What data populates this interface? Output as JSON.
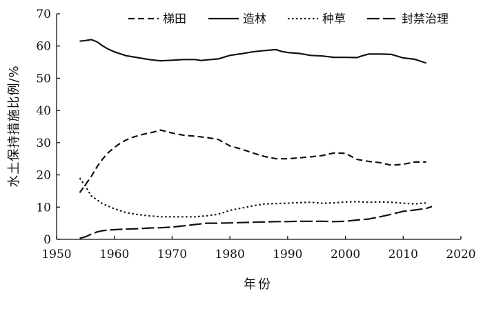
{
  "chart_data": {
    "type": "line",
    "xlabel": "年份",
    "ylabel": "水土保持措施比例/%",
    "xlim": [
      1950,
      2020
    ],
    "ylim": [
      0,
      70
    ],
    "xticks": [
      1950,
      1960,
      1970,
      1980,
      1990,
      2000,
      2010,
      2020
    ],
    "yticks": [
      0,
      10,
      20,
      30,
      40,
      50,
      60,
      70
    ],
    "grid": false,
    "legend_position": "top",
    "series": [
      {
        "name": "梯田",
        "style": "dashed",
        "color": "#111111",
        "x": [
          1954,
          1955,
          1956,
          1957,
          1958,
          1959,
          1960,
          1961,
          1962,
          1963,
          1965,
          1967,
          1968,
          1970,
          1972,
          1974,
          1976,
          1978,
          1980,
          1982,
          1984,
          1986,
          1988,
          1990,
          1992,
          1994,
          1996,
          1998,
          2000,
          2002,
          2004,
          2006,
          2008,
          2010,
          2012,
          2014
        ],
        "y": [
          14.5,
          17,
          19.5,
          22.5,
          25,
          27,
          28.5,
          29.8,
          30.8,
          31.6,
          32.6,
          33.4,
          33.9,
          33,
          32.3,
          32,
          31.6,
          31,
          29,
          28,
          26.8,
          25.7,
          25,
          25,
          25.3,
          25.6,
          26,
          26.8,
          26.7,
          24.8,
          24.2,
          23.8,
          23,
          23.3,
          24,
          24
        ]
      },
      {
        "name": "造林",
        "style": "solid",
        "color": "#111111",
        "x": [
          1954,
          1955,
          1956,
          1957,
          1958,
          1959,
          1960,
          1961,
          1962,
          1964,
          1966,
          1968,
          1970,
          1972,
          1974,
          1975,
          1976,
          1978,
          1980,
          1982,
          1984,
          1986,
          1988,
          1989,
          1990,
          1992,
          1994,
          1996,
          1998,
          2000,
          2002,
          2003,
          2004,
          2006,
          2008,
          2010,
          2012,
          2014
        ],
        "y": [
          61.5,
          61.7,
          62,
          61.3,
          60,
          59,
          58.2,
          57.6,
          57,
          56.4,
          55.8,
          55.4,
          55.6,
          55.8,
          55.8,
          55.5,
          55.7,
          56,
          57.1,
          57.6,
          58.2,
          58.6,
          58.9,
          58.3,
          58,
          57.7,
          57.1,
          56.9,
          56.5,
          56.5,
          56.4,
          57,
          57.5,
          57.5,
          57.4,
          56.3,
          55.9,
          54.7
        ]
      },
      {
        "name": "种草",
        "style": "dotted",
        "color": "#111111",
        "x": [
          1954,
          1955,
          1956,
          1958,
          1960,
          1962,
          1964,
          1966,
          1968,
          1970,
          1972,
          1974,
          1976,
          1978,
          1980,
          1982,
          1984,
          1986,
          1988,
          1990,
          1992,
          1994,
          1996,
          1998,
          2000,
          2002,
          2004,
          2006,
          2008,
          2010,
          2012,
          2014
        ],
        "y": [
          19,
          16.5,
          13.5,
          11,
          9.5,
          8.3,
          7.7,
          7.3,
          7,
          7,
          7,
          7,
          7.3,
          7.8,
          9,
          9.7,
          10.4,
          11,
          11.1,
          11.2,
          11.4,
          11.5,
          11.2,
          11.3,
          11.6,
          11.7,
          11.5,
          11.6,
          11.5,
          11.2,
          11,
          11.3
        ]
      },
      {
        "name": "封禁治理",
        "style": "longdash",
        "color": "#111111",
        "x": [
          1954,
          1955,
          1956,
          1957,
          1958,
          1959,
          1960,
          1962,
          1964,
          1966,
          1968,
          1970,
          1972,
          1974,
          1976,
          1978,
          1980,
          1982,
          1984,
          1986,
          1988,
          1990,
          1992,
          1994,
          1996,
          1998,
          2000,
          2002,
          2004,
          2006,
          2008,
          2010,
          2012,
          2014,
          2015
        ],
        "y": [
          0.3,
          0.8,
          1.6,
          2.3,
          2.7,
          2.9,
          3,
          3.2,
          3.3,
          3.5,
          3.6,
          3.8,
          4.2,
          4.6,
          5,
          5,
          5.1,
          5.2,
          5.3,
          5.4,
          5.5,
          5.5,
          5.6,
          5.6,
          5.6,
          5.5,
          5.6,
          6,
          6.3,
          7,
          7.8,
          8.7,
          9.1,
          9.6,
          10.2
        ]
      }
    ]
  }
}
